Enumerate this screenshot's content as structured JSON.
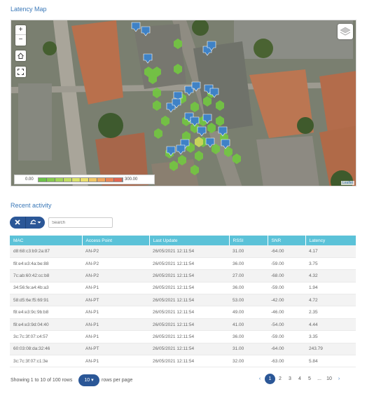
{
  "map_section": {
    "title": "Latency Map",
    "zoom_in": "+",
    "zoom_out": "−",
    "legend_min": "0.00",
    "legend_max": "300.00",
    "legend_colors": [
      "#6cc24a",
      "#86cb4f",
      "#a2d45a",
      "#c1dd63",
      "#dbe36b",
      "#ece06d",
      "#f0c765",
      "#eea65e",
      "#e98558",
      "#e26652"
    ],
    "attribution": "Leaflet"
  },
  "activity_section": {
    "title": "Recent activity",
    "search_placeholder": "Search",
    "columns": [
      "MAC",
      "Access Point",
      "Last Update",
      "RSSI",
      "SNR",
      "Latency"
    ],
    "rows": [
      [
        "d8:68:c3:b9:2a:87",
        "AN-P2",
        "26/05/2021 12:11:54",
        "31.00",
        "-64.00",
        "4.17"
      ],
      [
        "f8:e4:e3:4a:be:88",
        "AN-P2",
        "26/05/2021 12:11:54",
        "36.00",
        "-59.00",
        "3.75"
      ],
      [
        "7c:ab:60:42:cc:b8",
        "AN-P2",
        "26/05/2021 12:11:54",
        "27.00",
        "-68.00",
        "4.32"
      ],
      [
        "34:56:fe:a4:4b:a3",
        "AN-P1",
        "26/05/2021 12:11:54",
        "36.00",
        "-59.00",
        "1.94"
      ],
      [
        "58:d5:6e:f5:69:91",
        "AN-PT",
        "26/05/2021 12:11:54",
        "53.00",
        "-42.00",
        "4.72"
      ],
      [
        "f8:e4:e3:9c:9b:b8",
        "AN-P1",
        "26/05/2021 12:11:54",
        "49.00",
        "-46.00",
        "2.35"
      ],
      [
        "f8:e4:e3:9d:04:40",
        "AN-P1",
        "26/05/2021 12:11:54",
        "41.00",
        "-54.00",
        "4.44"
      ],
      [
        "3c:7c:3f:07:c4:57",
        "AN-P1",
        "26/05/2021 12:11:54",
        "36.00",
        "-59.00",
        "3.35"
      ],
      [
        "60:03:08:da:32:46",
        "AN-PT",
        "26/05/2021 12:11:54",
        "31.00",
        "-64.00",
        "243.79"
      ],
      [
        "3c:7c:3f:07:c1:3e",
        "AN-P1",
        "26/05/2021 12:11:54",
        "32.00",
        "-63.00",
        "5.84"
      ]
    ],
    "showing_text": "Showing 1 to 10 of 100 rows",
    "rows_per_page_value": "10 ▾",
    "rows_per_page_text": "rows per page",
    "pagination": {
      "prev": "‹",
      "pages": [
        "1",
        "2",
        "3",
        "4",
        "5",
        "...",
        "10"
      ],
      "active": "1",
      "next": "›"
    }
  },
  "colors": {
    "accent": "#2b5797",
    "header": "#5bc2d8",
    "title": "#3a78b8"
  }
}
